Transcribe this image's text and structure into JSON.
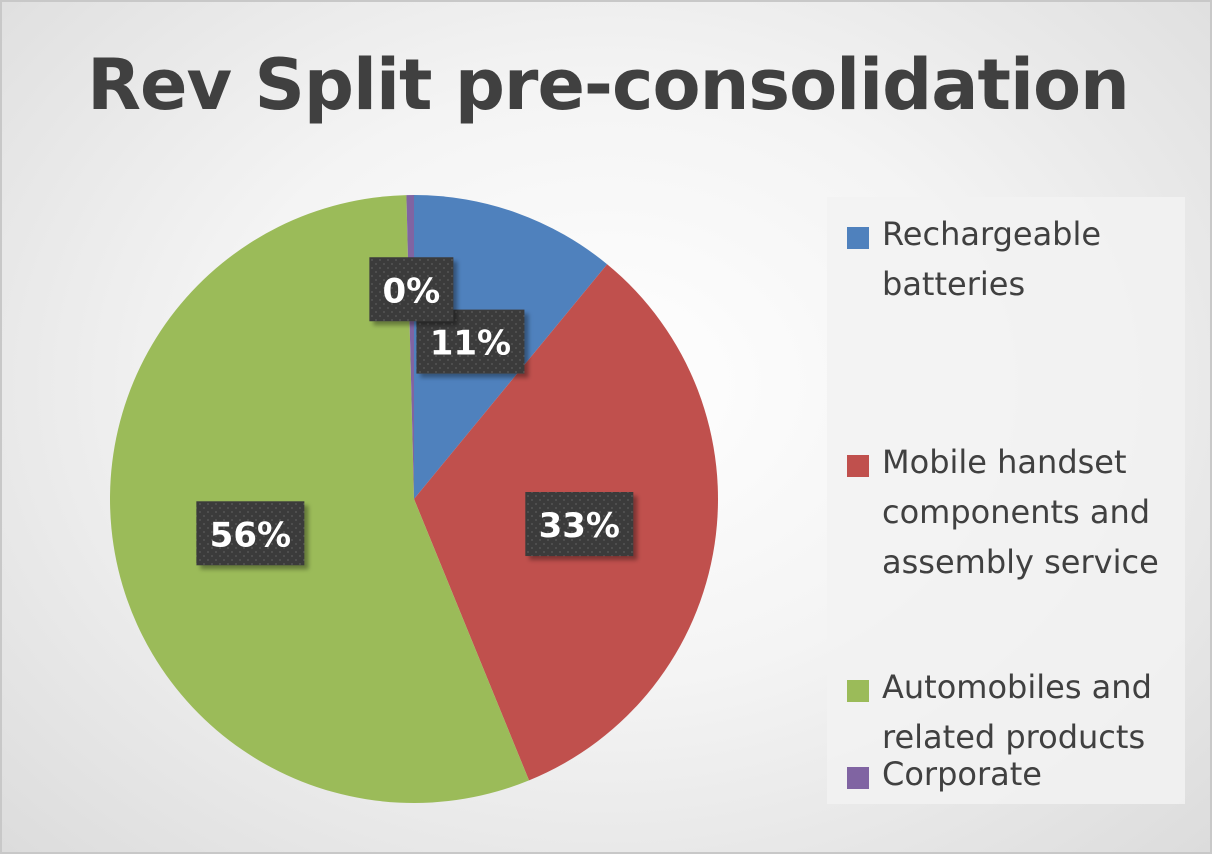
{
  "chart_data": {
    "type": "pie",
    "title": "Rev Split pre-consolidation",
    "categories": [
      "Rechargeable batteries",
      "Mobile handset components and assembly service",
      "Automobiles and related products",
      "Corporate"
    ],
    "values": [
      11,
      33,
      56,
      0.4
    ],
    "data_labels": [
      "11%",
      "33%",
      "56%",
      "0%"
    ],
    "colors": [
      "#4f81bd",
      "#c0504d",
      "#9bbb59",
      "#8064a2"
    ],
    "start_angle_deg": 90,
    "legend_position": "right",
    "label_style": "dark-box"
  }
}
